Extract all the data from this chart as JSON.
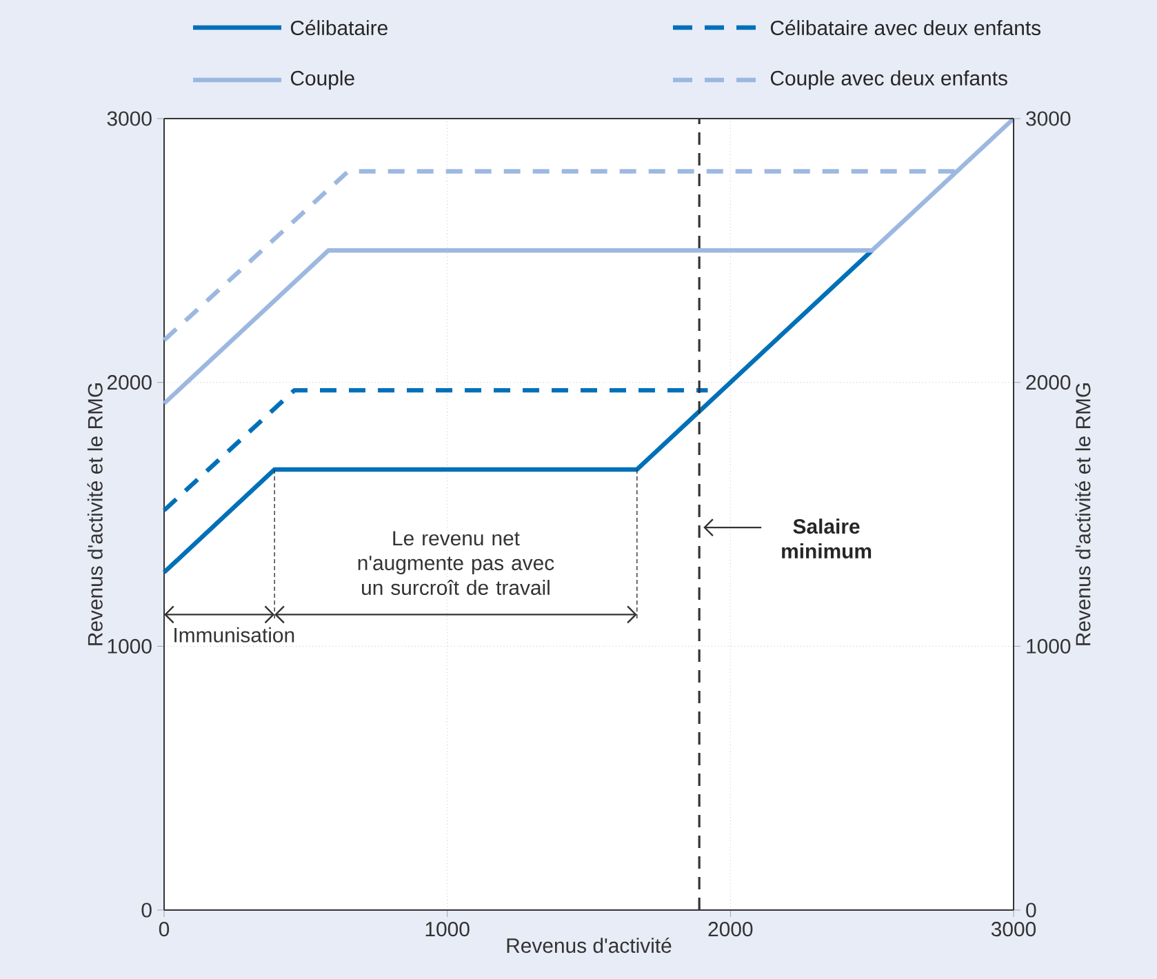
{
  "chart_data": {
    "type": "line",
    "xlabel": "Revenus d'activité",
    "ylabel": "Revenus d'activité et le RMG",
    "y2label": "Revenus d'activité et le RMG",
    "series": [
      {
        "name": "Célibataire",
        "color": "#0070b8",
        "line_style": "solid",
        "x": [
          0,
          390,
          1670,
          2500
        ],
        "values": [
          1280,
          1670,
          1670,
          2500
        ]
      },
      {
        "name": "Célibataire avec deux enfants",
        "color": "#0070b8",
        "line_style": "dashed",
        "x": [
          0,
          460,
          1920
        ],
        "values": [
          1515,
          1970,
          1970
        ]
      },
      {
        "name": "Couple",
        "color": "#9db8e0",
        "line_style": "solid",
        "x": [
          0,
          580,
          2500,
          3000
        ],
        "values": [
          1920,
          2500,
          2500,
          3000
        ]
      },
      {
        "name": "Couple avec deux enfants",
        "color": "#9db8e0",
        "line_style": "dashed",
        "x": [
          0,
          650,
          2800
        ],
        "values": [
          2160,
          2800,
          2800
        ]
      }
    ],
    "xlim": [
      0,
      3000
    ],
    "ylim": [
      0,
      3000
    ],
    "y2lim": [
      0,
      3000
    ],
    "xticks": [
      0,
      1000,
      2000,
      3000
    ],
    "yticks": [
      0,
      1000,
      2000,
      3000
    ],
    "y2ticks": [
      0,
      1000,
      2000,
      3000
    ],
    "ref_lines": [
      {
        "axis": "x",
        "value": 1890,
        "label": "Salaire minimum",
        "color": "#333333",
        "line_style": "dashed"
      }
    ],
    "annotations": [
      {
        "text": "Immunisation",
        "x": 390,
        "y": 1670
      },
      "Le revenu net n'augmente pas avec un surcroît de travail"
    ],
    "grid": true,
    "legend": "top"
  }
}
